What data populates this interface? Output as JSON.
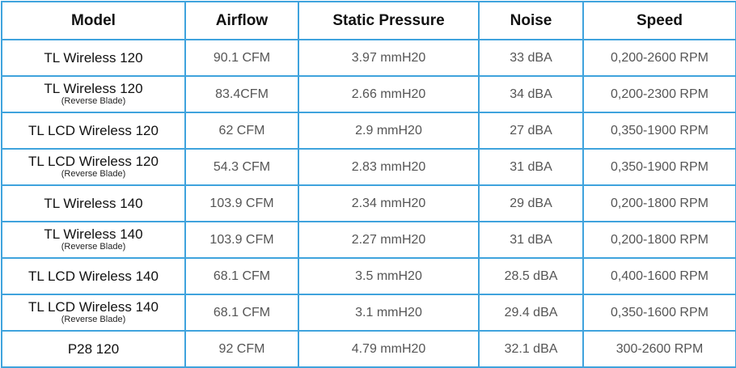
{
  "headers": [
    "Model",
    "Airflow",
    "Static Pressure",
    "Noise",
    "Speed"
  ],
  "rows": [
    {
      "model": "TL Wireless 120",
      "sub": "",
      "airflow": "90.1 CFM",
      "pressure": "3.97 mmH20",
      "noise": "33 dBA",
      "speed": "0,200-2600 RPM"
    },
    {
      "model": "TL Wireless 120",
      "sub": "(Reverse Blade)",
      "airflow": "83.4CFM",
      "pressure": "2.66 mmH20",
      "noise": "34 dBA",
      "speed": "0,200-2300 RPM"
    },
    {
      "model": "TL LCD Wireless 120",
      "sub": "",
      "airflow": "62 CFM",
      "pressure": "2.9 mmH20",
      "noise": "27 dBA",
      "speed": "0,350-1900 RPM"
    },
    {
      "model": "TL LCD Wireless 120",
      "sub": "(Reverse Blade)",
      "airflow": "54.3 CFM",
      "pressure": "2.83 mmH20",
      "noise": "31 dBA",
      "speed": "0,350-1900 RPM"
    },
    {
      "model": "TL Wireless 140",
      "sub": "",
      "airflow": "103.9 CFM",
      "pressure": "2.34 mmH20",
      "noise": "29 dBA",
      "speed": "0,200-1800 RPM"
    },
    {
      "model": "TL Wireless 140",
      "sub": "(Reverse Blade)",
      "airflow": "103.9 CFM",
      "pressure": "2.27 mmH20",
      "noise": "31 dBA",
      "speed": "0,200-1800 RPM"
    },
    {
      "model": "TL LCD Wireless 140",
      "sub": "",
      "airflow": "68.1 CFM",
      "pressure": "3.5 mmH20",
      "noise": "28.5 dBA",
      "speed": "0,400-1600 RPM"
    },
    {
      "model": "TL LCD Wireless 140",
      "sub": "(Reverse Blade)",
      "airflow": "68.1 CFM",
      "pressure": "3.1 mmH20",
      "noise": "29.4 dBA",
      "speed": "0,350-1600 RPM"
    },
    {
      "model": "P28 120",
      "sub": "",
      "airflow": "92 CFM",
      "pressure": "4.79 mmH20",
      "noise": "32.1 dBA",
      "speed": "300-2600 RPM"
    }
  ],
  "colors": {
    "border": "#3fa3dd",
    "header_text": "#111111",
    "value_text": "#555555"
  }
}
